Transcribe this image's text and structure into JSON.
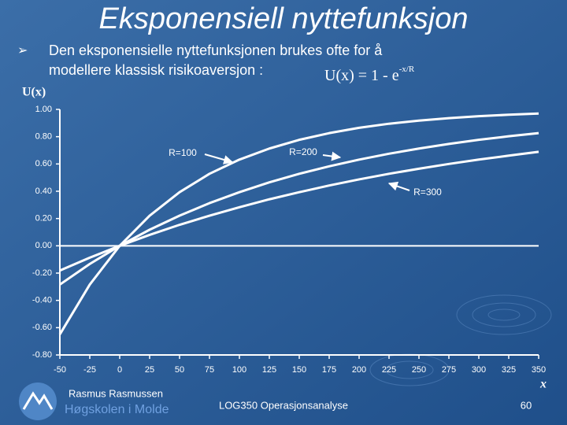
{
  "slide": {
    "title": "Eksponensiell nyttefunksjon",
    "bullet": [
      "Den eksponensielle nyttefunksjonen brukes ofte for å",
      "modellere klassisk risikoaversjon :"
    ],
    "formula": {
      "base": "U(x) = 1 - e",
      "exponent": "-x/R"
    },
    "author": "Rasmus Rasmussen",
    "institution": "Høgskolen i Molde",
    "course": "LOG350 Operasjonsanalyse",
    "page": "60"
  },
  "chart_data": {
    "type": "line",
    "y_label": "U(x)",
    "x_label": "x",
    "x": [
      -50,
      -25,
      0,
      25,
      50,
      75,
      100,
      125,
      150,
      175,
      200,
      225,
      250,
      275,
      300,
      325,
      350
    ],
    "series": [
      {
        "name": "R=100",
        "color": "#ffffff",
        "values": [
          -0.649,
          -0.284,
          0,
          0.221,
          0.393,
          0.528,
          0.632,
          0.713,
          0.777,
          0.826,
          0.865,
          0.895,
          0.918,
          0.936,
          0.95,
          0.961,
          0.97
        ]
      },
      {
        "name": "R=200",
        "color": "#ffffff",
        "values": [
          -0.284,
          -0.133,
          0,
          0.118,
          0.221,
          0.313,
          0.393,
          0.465,
          0.528,
          0.583,
          0.632,
          0.675,
          0.713,
          0.747,
          0.777,
          0.803,
          0.826
        ]
      },
      {
        "name": "R=300",
        "color": "#ffffff",
        "values": [
          -0.181,
          -0.087,
          0,
          0.08,
          0.154,
          0.221,
          0.283,
          0.341,
          0.393,
          0.442,
          0.487,
          0.528,
          0.565,
          0.6,
          0.632,
          0.661,
          0.689
        ]
      }
    ],
    "xlim": [
      -50,
      350
    ],
    "xticks": [
      -50,
      -25,
      0,
      25,
      50,
      75,
      100,
      125,
      150,
      175,
      200,
      225,
      250,
      275,
      300,
      325,
      350
    ],
    "ylim": [
      -0.8,
      1.0
    ],
    "yticks": [
      {
        "value": 1.0,
        "label": "1.00"
      },
      {
        "value": 0.8,
        "label": "0.80"
      },
      {
        "value": 0.6,
        "label": "0.60"
      },
      {
        "value": 0.4,
        "label": "0.40"
      },
      {
        "value": 0.2,
        "label": "0.20"
      },
      {
        "value": 0,
        "label": "0.00"
      },
      {
        "value": -0.2,
        "label": "-0.20"
      },
      {
        "value": -0.4,
        "label": "-0.40"
      },
      {
        "value": -0.6,
        "label": "-0.60"
      },
      {
        "value": -0.8,
        "label": "-0.80"
      }
    ]
  }
}
